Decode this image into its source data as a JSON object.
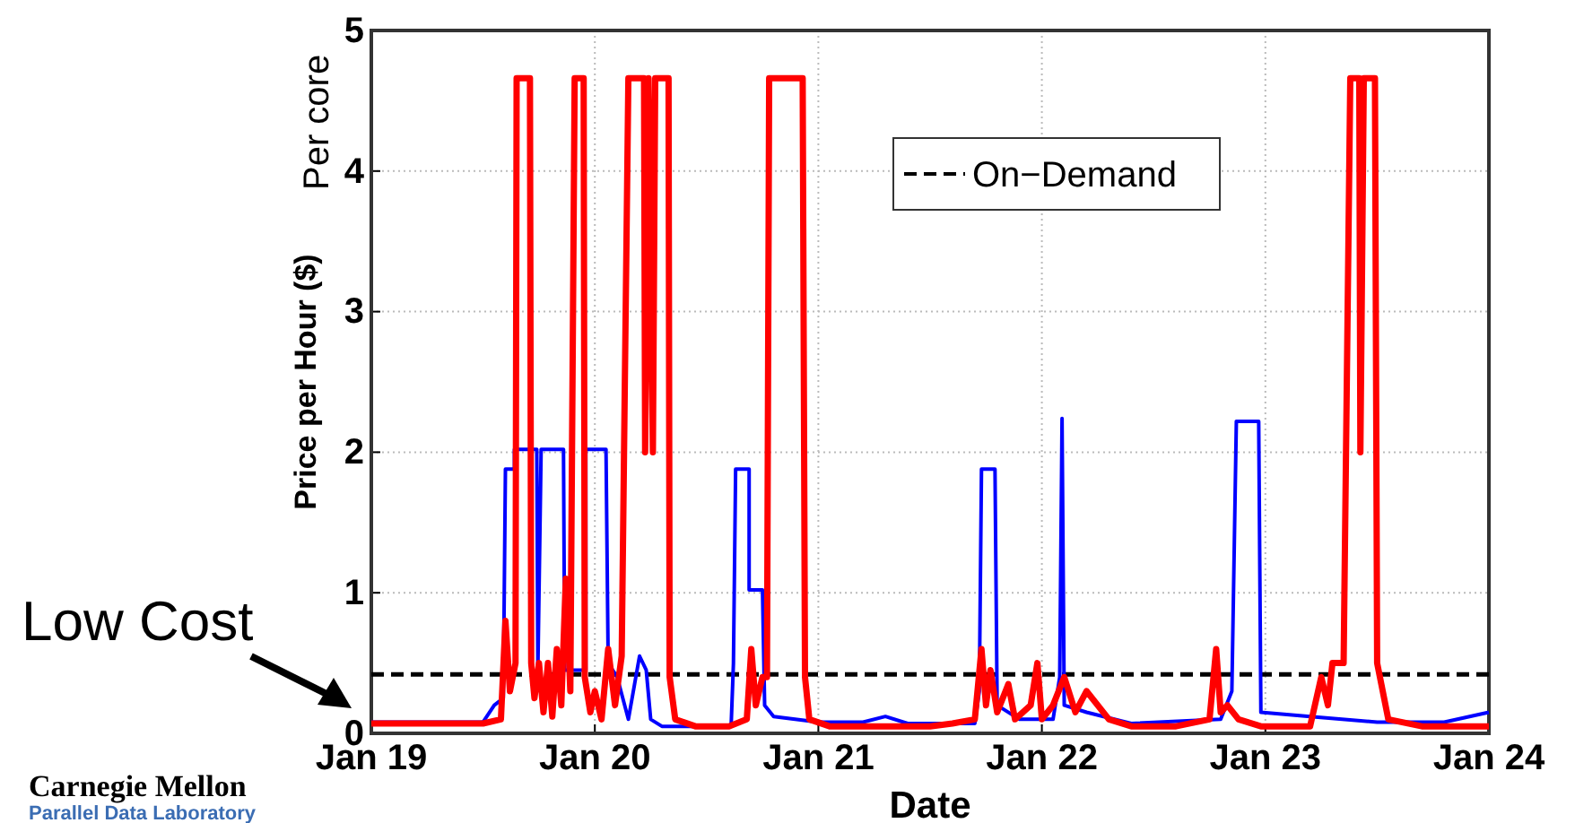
{
  "chart_data": {
    "type": "line",
    "xlabel": "Date",
    "ylabel": "Price per Hour ($)",
    "xlim": [
      "--01-19",
      "--01-24"
    ],
    "xticks": [
      {
        "value": "--01-19",
        "label": "Jan 19"
      },
      {
        "value": "--01-20",
        "label": "Jan 20"
      },
      {
        "value": "--01-21",
        "label": "Jan 21"
      },
      {
        "value": "--01-22",
        "label": "Jan 22"
      },
      {
        "value": "--01-23",
        "label": "Jan 23"
      },
      {
        "value": "--01-24",
        "label": "Jan 24"
      }
    ],
    "ylim": [
      0,
      5
    ],
    "yticks": [
      0,
      1,
      2,
      3,
      4,
      5
    ],
    "grid": true,
    "legend": "top right",
    "series": [
      {
        "color": "#0000ff",
        "x": [
          "--01-19T00:00",
          "--01-19T12:00",
          "--01-19T13:12",
          "--01-19T14:10",
          "--01-19T14:24",
          "--01-19T15:22",
          "--01-19T15:22",
          "--01-19T17:46",
          "--01-19T17:53",
          "--01-19T18:14",
          "--01-19T20:38",
          "--01-19T20:46",
          "--01-19T23:02",
          "--01-19T23:02",
          "--01-20T01:12",
          "--01-20T01:26",
          "--01-20T02:24",
          "--01-20T03:36",
          "--01-20T04:48",
          "--01-20T05:31",
          "--01-20T06:00",
          "--01-20T07:12",
          "--01-20T14:38",
          "--01-20T14:53",
          "--01-20T15:07",
          "--01-20T16:34",
          "--01-20T16:34",
          "--01-20T18:00",
          "--01-20T18:14",
          "--01-20T19:12",
          "--01-21T00:00",
          "--01-21T04:48",
          "--01-21T07:12",
          "--01-21T09:36",
          "--01-21T16:48",
          "--01-21T17:17",
          "--01-21T17:31",
          "--01-21T18:58",
          "--01-21T19:12",
          "--01-21T21:36",
          "--01-22T01:12",
          "--01-22T01:55",
          "--01-22T02:10",
          "--01-22T02:24",
          "--01-22T04:48",
          "--01-22T09:36",
          "--01-22T19:12",
          "--01-22T20:24",
          "--01-22T20:53",
          "--01-22T23:17",
          "--01-22T23:31",
          "--01-23T04:48",
          "--01-23T12:00",
          "--01-23T19:12",
          "--01-24T00:00"
        ],
        "values": [
          0.08,
          0.08,
          0.2,
          0.25,
          1.88,
          1.88,
          2.02,
          2.02,
          0.45,
          2.02,
          2.02,
          0.45,
          0.45,
          2.02,
          2.02,
          0.5,
          0.4,
          0.1,
          0.55,
          0.45,
          0.1,
          0.05,
          0.05,
          0.5,
          1.88,
          1.88,
          1.02,
          1.02,
          0.2,
          0.12,
          0.08,
          0.08,
          0.12,
          0.07,
          0.07,
          0.3,
          1.88,
          1.88,
          0.2,
          0.1,
          0.1,
          0.4,
          2.24,
          0.2,
          0.15,
          0.07,
          0.1,
          0.3,
          2.22,
          2.22,
          0.15,
          0.12,
          0.08,
          0.08,
          0.15
        ]
      },
      {
        "color": "#ff0000",
        "x": [
          "--01-19T00:00",
          "--01-19T12:00",
          "--01-19T13:55",
          "--01-19T14:24",
          "--01-19T14:53",
          "--01-19T15:29",
          "--01-19T15:36",
          "--01-19T17:02",
          "--01-19T17:10",
          "--01-19T17:31",
          "--01-19T18:00",
          "--01-19T18:29",
          "--01-19T18:58",
          "--01-19T19:26",
          "--01-19T19:55",
          "--01-19T20:24",
          "--01-19T20:53",
          "--01-19T21:22",
          "--01-19T21:50",
          "--01-19T22:48",
          "--01-19T22:55",
          "--01-19T23:31",
          "--01-20T00:00",
          "--01-20T00:43",
          "--01-20T01:26",
          "--01-20T02:10",
          "--01-20T02:53",
          "--01-20T03:36",
          "--01-20T05:17",
          "--01-20T05:24",
          "--01-20T05:46",
          "--01-20T06:14",
          "--01-20T06:29",
          "--01-20T07:55",
          "--01-20T08:02",
          "--01-20T08:38",
          "--01-20T10:48",
          "--01-20T14:24",
          "--01-20T16:19",
          "--01-20T16:48",
          "--01-20T17:17",
          "--01-20T18:00",
          "--01-20T18:29",
          "--01-20T18:43",
          "--01-20T22:19",
          "--01-20T22:34",
          "--01-20T23:02",
          "--01-21T01:12",
          "--01-21T12:00",
          "--01-21T14:24",
          "--01-21T16:48",
          "--01-21T17:31",
          "--01-21T18:00",
          "--01-21T18:29",
          "--01-21T19:12",
          "--01-21T20:24",
          "--01-21T21:07",
          "--01-21T22:48",
          "--01-21T23:31",
          "--01-22T00:00",
          "--01-22T01:12",
          "--01-22T02:24",
          "--01-22T03:36",
          "--01-22T04:48",
          "--01-22T07:12",
          "--01-22T09:36",
          "--01-22T14:24",
          "--01-22T18:00",
          "--01-22T18:43",
          "--01-22T19:12",
          "--01-22T19:55",
          "--01-22T21:07",
          "--01-22T23:31",
          "--01-23T04:48",
          "--01-23T06:00",
          "--01-23T06:43",
          "--01-23T07:12",
          "--01-23T08:24",
          "--01-23T09:07",
          "--01-23T10:05",
          "--01-23T10:12",
          "--01-23T10:34",
          "--01-23T11:46",
          "--01-23T12:00",
          "--01-23T13:12",
          "--01-23T16:48",
          "--01-24T00:00"
        ],
        "values": [
          0.07,
          0.07,
          0.1,
          0.8,
          0.3,
          0.5,
          4.66,
          4.66,
          0.5,
          0.25,
          0.5,
          0.15,
          0.5,
          0.12,
          0.6,
          0.2,
          1.1,
          0.3,
          4.66,
          4.66,
          0.4,
          0.15,
          0.3,
          0.1,
          0.6,
          0.2,
          0.55,
          4.66,
          4.66,
          2.0,
          4.66,
          2.0,
          4.66,
          4.66,
          0.4,
          0.1,
          0.05,
          0.05,
          0.1,
          0.6,
          0.2,
          0.4,
          0.4,
          4.66,
          4.66,
          0.4,
          0.1,
          0.05,
          0.05,
          0.07,
          0.1,
          0.6,
          0.2,
          0.45,
          0.15,
          0.35,
          0.1,
          0.2,
          0.5,
          0.1,
          0.2,
          0.4,
          0.15,
          0.3,
          0.1,
          0.05,
          0.05,
          0.1,
          0.6,
          0.15,
          0.2,
          0.1,
          0.05,
          0.05,
          0.4,
          0.2,
          0.5,
          0.5,
          4.66,
          4.66,
          2.0,
          4.66,
          4.66,
          0.5,
          0.1,
          0.05,
          0.05
        ]
      }
    ],
    "ref_lines": [
      {
        "axis": "y",
        "value": 0.42,
        "label": "On−Demand",
        "color": "#000000",
        "line_style": "dashed"
      }
    ],
    "annotations": [
      "Per core",
      "Low Cost",
      "Carnegie Mellon",
      "Parallel Data Laboratory"
    ]
  }
}
